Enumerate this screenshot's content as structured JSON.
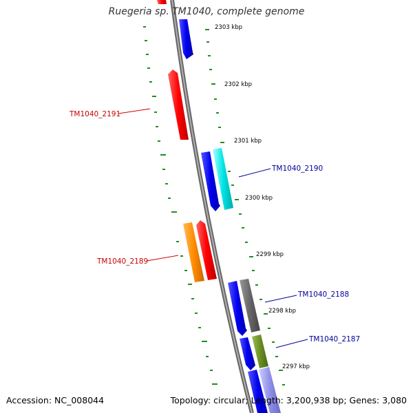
{
  "title": "Ruegeria sp. TM1040, complete genome",
  "accession": "Accession: NC_008044",
  "topology": "Topology: circular; Length: 3,200,938 bp; Genes: 3,080",
  "ticks": [
    "2303 kbp",
    "2302 kbp",
    "2301 kbp",
    "2300 kbp",
    "2299 kbp",
    "2298 kbp",
    "2297 kbp"
  ],
  "gene_labels": [
    "TM1040_2191",
    "TM1040_2190",
    "TM1040_2189",
    "TM1040_2188",
    "TM1040_2187"
  ],
  "colors": {
    "forward_label": "#000099",
    "reverse_label": "#cc0000",
    "tick": "#228b22",
    "backbone": "#888888"
  }
}
